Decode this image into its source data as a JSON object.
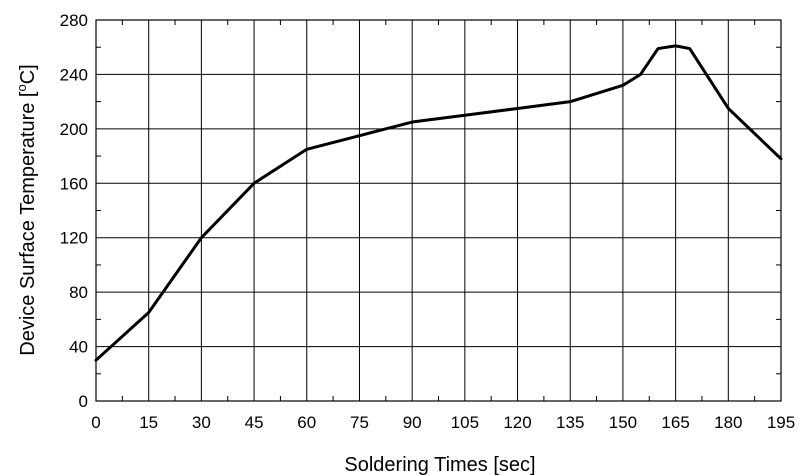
{
  "chart_data": {
    "type": "line",
    "xlabel": "Soldering Times [sec]",
    "ylabel": "Device Surface Temperature [",
    "ylabel_sup": "o",
    "ylabel_tail": "C]",
    "xlim": [
      0,
      195
    ],
    "ylim": [
      0,
      280
    ],
    "xticks": [
      0,
      15,
      30,
      45,
      60,
      75,
      90,
      105,
      120,
      135,
      150,
      165,
      180,
      195
    ],
    "xtick_labels": [
      "0",
      "15",
      "30",
      "45",
      "60",
      "75",
      "90",
      "105",
      "120",
      "135",
      "150",
      "165",
      "180",
      "195"
    ],
    "yticks": [
      0,
      40,
      80,
      120,
      160,
      200,
      240,
      280
    ],
    "ytick_labels": [
      "0",
      "40",
      "80",
      "120",
      "160",
      "200",
      "240",
      "280"
    ],
    "grid": true,
    "series": [
      {
        "x": [
          0,
          15,
          30,
          45,
          60,
          75,
          90,
          105,
          120,
          135,
          150,
          155,
          160,
          165,
          169,
          180,
          195
        ],
        "y": [
          30,
          65,
          120,
          160,
          185,
          195,
          205,
          210,
          215,
          220,
          232,
          240,
          259,
          261,
          259,
          215,
          178
        ],
        "color": "#000000"
      }
    ]
  }
}
